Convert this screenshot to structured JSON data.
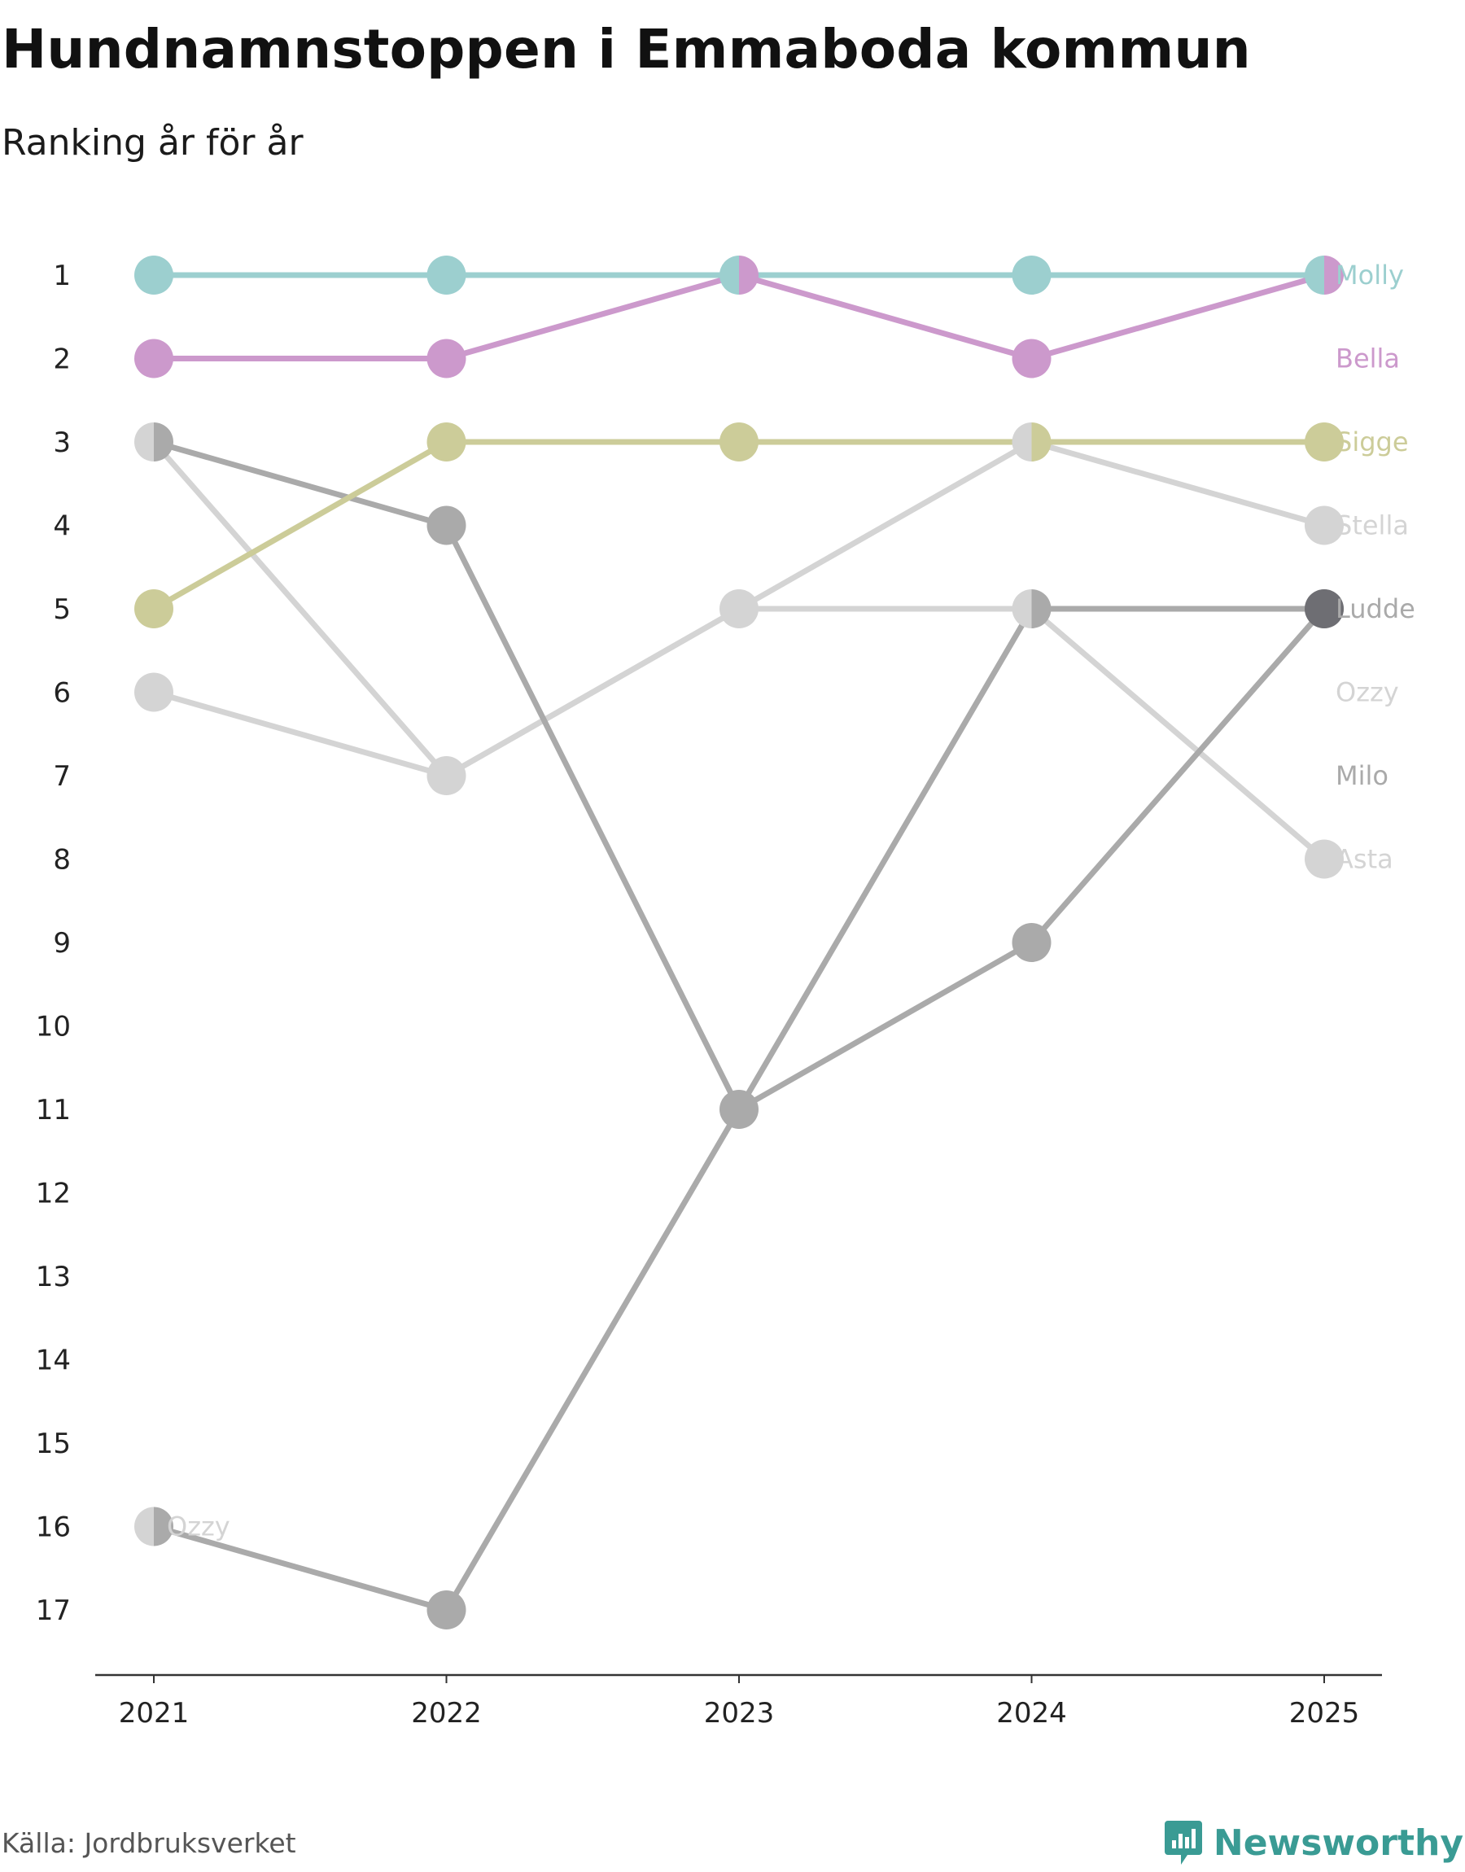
{
  "title": "Hundnamnstoppen i Emmaboda kommun",
  "subtitle": "Ranking år för år",
  "source": "Källa: Jordbruksverket",
  "brand": {
    "name": "Newsworthy",
    "icon": "newsworthy-logo-icon",
    "color": "#3a9b94"
  },
  "chart_data": {
    "type": "line",
    "x": [
      "2021",
      "2022",
      "2023",
      "2024",
      "2025"
    ],
    "yticks": [
      1,
      2,
      3,
      4,
      5,
      6,
      7,
      8,
      9,
      10,
      11,
      12,
      13,
      14,
      15,
      16,
      17
    ],
    "ylim": [
      1,
      17
    ],
    "y_inverted": true,
    "series": [
      {
        "name": "Molly",
        "color": "#9ccfcf",
        "values": [
          1,
          1,
          1,
          1,
          1
        ]
      },
      {
        "name": "Bella",
        "color": "#cc99cc",
        "values": [
          2,
          2,
          1,
          2,
          1
        ]
      },
      {
        "name": "Sigge",
        "color": "#cccc99",
        "values": [
          5,
          3,
          3,
          3,
          3
        ]
      },
      {
        "name": "Stella",
        "color": "#d4d4d4",
        "values": [
          3,
          7,
          5,
          3,
          4
        ]
      },
      {
        "name": "Ludde",
        "color": "#aaaaaa",
        "values": [
          3,
          4,
          11,
          5,
          5
        ]
      },
      {
        "name": "Ozzy",
        "color": "#d4d4d4",
        "values": [
          6,
          7,
          5,
          5,
          8
        ]
      },
      {
        "name": "Milo",
        "color": "#aaaaaa",
        "values": [
          16,
          17,
          11,
          9,
          5
        ]
      },
      {
        "name": "Asta",
        "color": "#d4d4d4",
        "values": [
          16,
          null,
          null,
          null,
          null
        ]
      }
    ],
    "end_labels": [
      {
        "name": "Molly",
        "rank": 1,
        "color": "#9ccfcf"
      },
      {
        "name": "Bella",
        "rank": 2,
        "color": "#cc99cc"
      },
      {
        "name": "Sigge",
        "rank": 3,
        "color": "#cccc99"
      },
      {
        "name": "Stella",
        "rank": 4,
        "color": "#d4d4d4"
      },
      {
        "name": "Ludde",
        "rank": 5,
        "color": "#aaaaaa"
      },
      {
        "name": "Ozzy",
        "rank": 6,
        "color": "#d4d4d4"
      },
      {
        "name": "Milo",
        "rank": 7,
        "color": "#aaaaaa"
      },
      {
        "name": "Asta",
        "rank": 8,
        "color": "#d4d4d4"
      }
    ],
    "start_labels": [
      {
        "name": "Ozzy",
        "rank": 16,
        "color": "#d4d4d4"
      }
    ],
    "grid": false
  }
}
